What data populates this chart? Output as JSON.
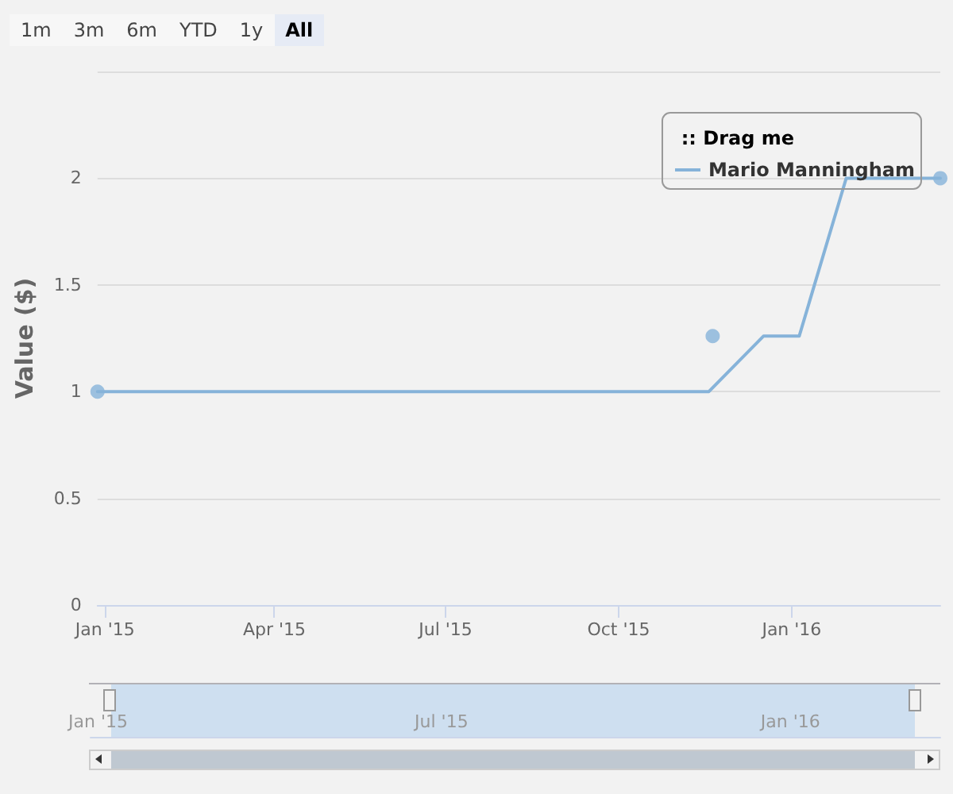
{
  "chart_data": {
    "type": "line",
    "ylabel": "Value ($)",
    "legend_title": ":: Drag me",
    "annotations": [
      "1m",
      "3m",
      "6m",
      "YTD",
      "1y",
      "All"
    ],
    "series": [
      {
        "name": "Mario Manningham",
        "color": "#86b3d9",
        "x": [
          "2014-12-28",
          "2015-11-18",
          "2015-12-17",
          "2016-01-05",
          "2016-01-30",
          "2016-03-20"
        ],
        "values": [
          1,
          1,
          1.26,
          1.26,
          2,
          2
        ],
        "marker": "none"
      },
      {
        "type": "scatter",
        "color": "#86b3d9",
        "x": [
          "2014-12-28",
          "2015-11-20",
          "2016-03-20"
        ],
        "values": [
          1,
          1.26,
          2
        ],
        "marker": "circle"
      }
    ],
    "xlim": [
      "2014-12-28",
      "2016-03-20"
    ],
    "xticks": [
      {
        "value": "2015-01-01",
        "label": "Jan '15"
      },
      {
        "value": "2015-04-01",
        "label": "Apr '15"
      },
      {
        "value": "2015-07-01",
        "label": "Jul '15"
      },
      {
        "value": "2015-10-01",
        "label": "Oct '15"
      },
      {
        "value": "2016-01-01",
        "label": "Jan '16"
      }
    ],
    "x2lim": [
      "2014-12-28",
      "2016-03-20"
    ],
    "x2ticks": [
      {
        "value": "2015-01-01",
        "label": "Jan '15"
      },
      {
        "value": "2015-07-01",
        "label": "Jul '15"
      },
      {
        "value": "2016-01-01",
        "label": "Jan '16"
      }
    ],
    "ylim": [
      0,
      2.5
    ],
    "yticks": [
      0,
      0.5,
      1,
      1.5,
      2,
      {
        "value": 2.5,
        "label": null
      }
    ],
    "grid": "y",
    "legend": "top right",
    "line_style": "solid"
  }
}
